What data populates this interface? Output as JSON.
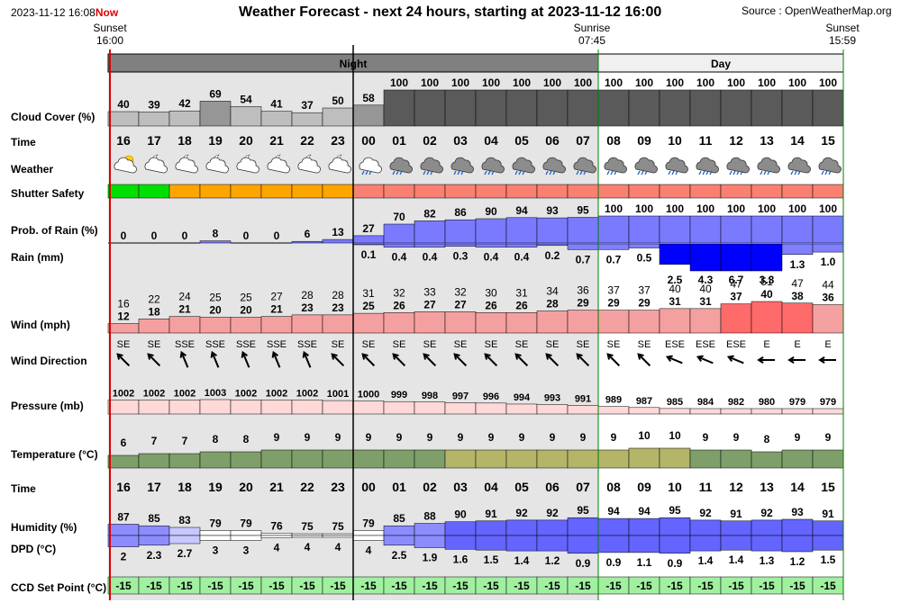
{
  "header": {
    "timestamp": "2023-11-12 16:08",
    "now_label": "Now",
    "title": "Weather Forecast - next 24 hours, starting at 2023-11-12 16:00",
    "source": "Source : OpenWeatherMap.org",
    "sunset_left": {
      "label": "Sunset",
      "time": "16:00"
    },
    "sunrise": {
      "label": "Sunrise",
      "time": "07:45"
    },
    "sunset_right": {
      "label": "Sunset",
      "time": "15:59"
    },
    "night_label": "Night",
    "day_label": "Day"
  },
  "row_labels": {
    "cloud": "Cloud Cover (%)",
    "time": "Time",
    "weather": "Weather",
    "shutter": "Shutter Safety",
    "prob_rain": "Prob. of Rain (%)",
    "rain": "Rain (mm)",
    "wind": "Wind (mph)",
    "wind_dir": "Wind Direction",
    "pressure": "Pressure (mb)",
    "temperature": "Temperature (°C)",
    "time2": "Time",
    "humidity": "Humidity (%)",
    "dpd": "DPD (°C)",
    "ccd": "CCD Set Point (°C)"
  },
  "chart_data": {
    "type": "table",
    "hours": [
      "16",
      "17",
      "18",
      "19",
      "20",
      "21",
      "22",
      "23",
      "00",
      "01",
      "02",
      "03",
      "04",
      "05",
      "06",
      "07",
      "08",
      "09",
      "10",
      "11",
      "12",
      "13",
      "14",
      "15"
    ],
    "cloud_cover": [
      40,
      39,
      42,
      69,
      54,
      41,
      37,
      50,
      58,
      100,
      100,
      100,
      100,
      100,
      100,
      100,
      100,
      100,
      100,
      100,
      100,
      100,
      100,
      100
    ],
    "weather_icons": [
      "partly-cloudy-day-icon",
      "partly-cloudy-night-icon",
      "partly-cloudy-night-icon",
      "partly-cloudy-night-icon",
      "partly-cloudy-night-icon",
      "partly-cloudy-night-icon",
      "partly-cloudy-night-icon",
      "partly-cloudy-night-icon",
      "rain-night-icon",
      "rain-icon",
      "rain-icon",
      "rain-icon",
      "rain-icon",
      "rain-icon",
      "rain-icon",
      "rain-icon",
      "rain-icon",
      "rain-icon",
      "rain-icon",
      "heavy-rain-icon",
      "heavy-rain-icon",
      "rain-icon",
      "rain-icon",
      "rain-icon"
    ],
    "shutter_safety": [
      "safe",
      "safe",
      "caution",
      "caution",
      "caution",
      "caution",
      "caution",
      "caution",
      "unsafe",
      "unsafe",
      "unsafe",
      "unsafe",
      "unsafe",
      "unsafe",
      "unsafe",
      "unsafe",
      "unsafe",
      "unsafe",
      "unsafe",
      "unsafe",
      "unsafe",
      "unsafe",
      "unsafe",
      "unsafe"
    ],
    "prob_of_rain": [
      0,
      0,
      0,
      8,
      0,
      0,
      6,
      13,
      27,
      70,
      82,
      86,
      90,
      94,
      93,
      95,
      100,
      100,
      100,
      100,
      100,
      100,
      100,
      100
    ],
    "rain_mm": [
      null,
      null,
      null,
      null,
      null,
      null,
      null,
      null,
      0.1,
      0.4,
      0.4,
      0.3,
      0.4,
      0.4,
      0.2,
      0.7,
      0.7,
      0.5,
      2.5,
      4.3,
      6.7,
      3.3,
      1.3,
      1.0
    ],
    "wind_gust": [
      16,
      22,
      24,
      25,
      25,
      27,
      28,
      28,
      31,
      32,
      33,
      32,
      30,
      31,
      34,
      36,
      37,
      37,
      40,
      40,
      47,
      51,
      47,
      44
    ],
    "wind_speed": [
      12,
      18,
      21,
      20,
      20,
      21,
      23,
      23,
      25,
      26,
      27,
      27,
      26,
      26,
      28,
      29,
      29,
      29,
      31,
      31,
      37,
      40,
      38,
      36
    ],
    "wind_direction": [
      "SE",
      "SE",
      "SSE",
      "SSE",
      "SSE",
      "SSE",
      "SSE",
      "SE",
      "SE",
      "SE",
      "SE",
      "SE",
      "SE",
      "SE",
      "SE",
      "SE",
      "SE",
      "SE",
      "ESE",
      "ESE",
      "ESE",
      "E",
      "E",
      "E"
    ],
    "pressure_mb": [
      1002,
      1002,
      1002,
      1003,
      1002,
      1002,
      1002,
      1001,
      1000,
      999,
      998,
      997,
      996,
      994,
      993,
      991,
      989,
      987,
      985,
      984,
      982,
      980,
      979,
      979
    ],
    "temperature_c": [
      6,
      7,
      7,
      8,
      8,
      9,
      9,
      9,
      9,
      9,
      9,
      9,
      9,
      9,
      9,
      9,
      9,
      10,
      10,
      9,
      9,
      8,
      9,
      9
    ],
    "humidity_pct": [
      87,
      85,
      83,
      79,
      79,
      76,
      75,
      75,
      79,
      85,
      88,
      90,
      91,
      92,
      92,
      95,
      94,
      94,
      95,
      92,
      91,
      92,
      93,
      91
    ],
    "dpd_c": [
      2.0,
      2.3,
      2.7,
      3,
      3,
      4,
      4,
      4,
      4,
      2.5,
      1.9,
      1.6,
      1.5,
      1.4,
      1.2,
      0.9,
      0.9,
      1.1,
      0.9,
      1.4,
      1.4,
      1.3,
      1.2,
      1.5
    ],
    "ccd_set_point_c": [
      -15,
      -15,
      -15,
      -15,
      -15,
      -15,
      -15,
      -15,
      -15,
      -15,
      -15,
      -15,
      -15,
      -15,
      -15,
      -15,
      -15,
      -15,
      -15,
      -15,
      -15,
      -15,
      -15,
      -15
    ]
  },
  "colors": {
    "night_bg": "#e5e5e5",
    "day_bg": "#ffffff",
    "night_band": "#808080",
    "day_band": "#f0f0f0",
    "shutter_safe": "#00e000",
    "shutter_caution": "#ffa500",
    "shutter_unsafe": "#fa8072",
    "ccd": "#a0f0a0",
    "now_line": "#e00000",
    "day_line": "#008000"
  }
}
